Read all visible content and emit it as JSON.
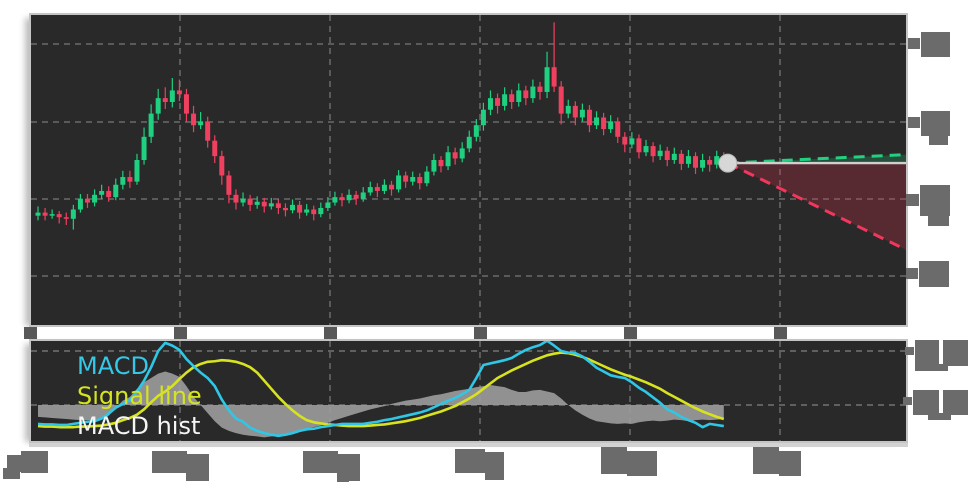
{
  "ui": {
    "macd_legend": [
      {
        "label": "MACD",
        "color": "#35c8e8"
      },
      {
        "label": "Signal line",
        "color": "#d6e41f"
      },
      {
        "label": "MACD hist",
        "color": "#f5f5f5"
      }
    ],
    "redaction_note": "all axis tick labels are obscured by gray pixelated blocks"
  },
  "colors": {
    "panel_bg": "#292929",
    "grid": "#b3b3b3",
    "candle_up": "#1fd081",
    "candle_down": "#f0405f",
    "forecast_upper_line": "#22d17d",
    "forecast_lower_line": "#f2375c",
    "forecast_upper_fill": "rgba(30,210,125,0.22)",
    "forecast_lower_fill": "rgba(235,45,80,0.24)",
    "forecast_baseline": "#cfcfcf",
    "anchor_dot": "#d7d7d7",
    "macd_line": "#2fc7e6",
    "signal_line": "#d8e320",
    "hist_fill": "#9c9c9c",
    "redacted_block": "#6b6b6b"
  },
  "chart_data": {
    "type": "candlestick",
    "note": "prices in normalized units; horizontal gridlines sit at 1,2,3,4; axis labels redacted in source image",
    "price_axis": {
      "gridline_values": [
        4,
        3,
        2,
        1
      ],
      "labels_redacted": true
    },
    "time_axis": {
      "tick_count": 6,
      "labels_redacted": true
    },
    "candles": [
      [
        1.78,
        1.9,
        1.72,
        1.82
      ],
      [
        1.82,
        1.88,
        1.72,
        1.78
      ],
      [
        1.78,
        1.86,
        1.74,
        1.8
      ],
      [
        1.8,
        1.84,
        1.68,
        1.76
      ],
      [
        1.76,
        1.82,
        1.66,
        1.74
      ],
      [
        1.74,
        1.92,
        1.6,
        1.86
      ],
      [
        1.86,
        2.06,
        1.82,
        2.0
      ],
      [
        2.0,
        2.06,
        1.88,
        1.95
      ],
      [
        1.95,
        2.12,
        1.9,
        2.05
      ],
      [
        2.05,
        2.18,
        2.0,
        2.1
      ],
      [
        2.1,
        2.16,
        1.96,
        2.02
      ],
      [
        2.02,
        2.26,
        1.98,
        2.18
      ],
      [
        2.18,
        2.36,
        2.12,
        2.28
      ],
      [
        2.28,
        2.36,
        2.14,
        2.22
      ],
      [
        2.22,
        2.58,
        2.18,
        2.5
      ],
      [
        2.5,
        2.92,
        2.44,
        2.8
      ],
      [
        2.8,
        3.22,
        2.72,
        3.1
      ],
      [
        3.1,
        3.42,
        3.02,
        3.3
      ],
      [
        3.3,
        3.44,
        3.16,
        3.25
      ],
      [
        3.25,
        3.56,
        3.18,
        3.4
      ],
      [
        3.4,
        3.54,
        3.26,
        3.35
      ],
      [
        3.35,
        3.42,
        3.0,
        3.1
      ],
      [
        3.1,
        3.2,
        2.86,
        2.95
      ],
      [
        2.95,
        3.12,
        2.9,
        3.0
      ],
      [
        3.0,
        3.06,
        2.66,
        2.75
      ],
      [
        2.75,
        2.82,
        2.46,
        2.55
      ],
      [
        2.55,
        2.62,
        2.18,
        2.3
      ],
      [
        2.3,
        2.36,
        1.94,
        2.05
      ],
      [
        2.05,
        2.12,
        1.86,
        1.95
      ],
      [
        1.95,
        2.08,
        1.9,
        2.0
      ],
      [
        2.0,
        2.05,
        1.84,
        1.92
      ],
      [
        1.92,
        2.03,
        1.87,
        1.96
      ],
      [
        1.96,
        2.01,
        1.82,
        1.9
      ],
      [
        1.9,
        2.01,
        1.86,
        1.94
      ],
      [
        1.94,
        1.99,
        1.8,
        1.88
      ],
      [
        1.88,
        1.94,
        1.77,
        1.85
      ],
      [
        1.85,
        1.99,
        1.81,
        1.92
      ],
      [
        1.92,
        1.97,
        1.74,
        1.82
      ],
      [
        1.82,
        1.93,
        1.78,
        1.86
      ],
      [
        1.86,
        1.91,
        1.72,
        1.8
      ],
      [
        1.8,
        1.95,
        1.76,
        1.88
      ],
      [
        1.88,
        2.02,
        1.84,
        1.95
      ],
      [
        1.95,
        2.09,
        1.91,
        2.02
      ],
      [
        2.02,
        2.07,
        1.9,
        1.98
      ],
      [
        1.98,
        2.12,
        1.94,
        2.05
      ],
      [
        2.05,
        2.1,
        1.92,
        2.0
      ],
      [
        2.0,
        2.15,
        1.96,
        2.08
      ],
      [
        2.08,
        2.22,
        2.04,
        2.15
      ],
      [
        2.15,
        2.2,
        2.02,
        2.1
      ],
      [
        2.1,
        2.25,
        2.06,
        2.18
      ],
      [
        2.18,
        2.23,
        2.04,
        2.12
      ],
      [
        2.12,
        2.37,
        2.08,
        2.3
      ],
      [
        2.3,
        2.35,
        2.14,
        2.22
      ],
      [
        2.22,
        2.35,
        2.17,
        2.28
      ],
      [
        2.28,
        2.33,
        2.12,
        2.2
      ],
      [
        2.2,
        2.42,
        2.16,
        2.35
      ],
      [
        2.35,
        2.58,
        2.3,
        2.5
      ],
      [
        2.5,
        2.55,
        2.34,
        2.42
      ],
      [
        2.42,
        2.68,
        2.37,
        2.6
      ],
      [
        2.6,
        2.66,
        2.44,
        2.52
      ],
      [
        2.52,
        2.73,
        2.47,
        2.65
      ],
      [
        2.65,
        2.88,
        2.6,
        2.8
      ],
      [
        2.8,
        3.03,
        2.74,
        2.95
      ],
      [
        2.95,
        3.24,
        2.88,
        3.15
      ],
      [
        3.15,
        3.4,
        3.08,
        3.3
      ],
      [
        3.3,
        3.36,
        3.1,
        3.2
      ],
      [
        3.2,
        3.44,
        3.14,
        3.35
      ],
      [
        3.35,
        3.41,
        3.16,
        3.25
      ],
      [
        3.25,
        3.49,
        3.19,
        3.4
      ],
      [
        3.4,
        3.46,
        3.21,
        3.3
      ],
      [
        3.3,
        3.54,
        3.24,
        3.45
      ],
      [
        3.45,
        3.51,
        3.28,
        3.38
      ],
      [
        3.38,
        3.9,
        3.3,
        3.7
      ],
      [
        3.7,
        4.28,
        3.38,
        3.45
      ],
      [
        3.45,
        3.52,
        2.96,
        3.1
      ],
      [
        3.1,
        3.28,
        3.04,
        3.2
      ],
      [
        3.2,
        3.26,
        2.95,
        3.05
      ],
      [
        3.05,
        3.23,
        3.0,
        3.15
      ],
      [
        3.15,
        3.21,
        2.86,
        2.95
      ],
      [
        2.95,
        3.13,
        2.9,
        3.05
      ],
      [
        3.05,
        3.11,
        2.82,
        2.9
      ],
      [
        2.9,
        3.08,
        2.85,
        3.0
      ],
      [
        3.0,
        3.05,
        2.72,
        2.8
      ],
      [
        2.8,
        2.86,
        2.6,
        2.7
      ],
      [
        2.7,
        2.86,
        2.65,
        2.78
      ],
      [
        2.78,
        2.83,
        2.52,
        2.6
      ],
      [
        2.6,
        2.76,
        2.55,
        2.68
      ],
      [
        2.68,
        2.73,
        2.47,
        2.55
      ],
      [
        2.55,
        2.7,
        2.5,
        2.62
      ],
      [
        2.62,
        2.67,
        2.42,
        2.5
      ],
      [
        2.5,
        2.66,
        2.45,
        2.58
      ],
      [
        2.58,
        2.63,
        2.37,
        2.45
      ],
      [
        2.45,
        2.63,
        2.4,
        2.55
      ],
      [
        2.55,
        2.6,
        2.32,
        2.4
      ],
      [
        2.4,
        2.58,
        2.35,
        2.5
      ],
      [
        2.5,
        2.55,
        2.35,
        2.44
      ],
      [
        2.44,
        2.62,
        2.39,
        2.55
      ],
      [
        2.55,
        2.6,
        2.38,
        2.46
      ]
    ],
    "forecast": {
      "anchor_index": 97,
      "anchor_price": 2.46,
      "baseline_price": 2.46,
      "upper_end_price": 2.57,
      "lower_end_price": 1.34
    },
    "macd_panel": {
      "gridline_value": 1.0,
      "zero_line": 0.0,
      "macd": [
        -0.35,
        -0.36,
        -0.36,
        -0.37,
        -0.37,
        -0.35,
        -0.33,
        -0.31,
        -0.3,
        -0.25,
        -0.16,
        -0.05,
        0.02,
        0.09,
        0.25,
        0.45,
        0.7,
        1.0,
        1.15,
        1.1,
        1.02,
        0.85,
        0.72,
        0.6,
        0.5,
        0.35,
        0.1,
        -0.1,
        -0.25,
        -0.31,
        -0.42,
        -0.48,
        -0.52,
        -0.55,
        -0.57,
        -0.55,
        -0.52,
        -0.48,
        -0.45,
        -0.44,
        -0.41,
        -0.39,
        -0.37,
        -0.35,
        -0.35,
        -0.35,
        -0.35,
        -0.33,
        -0.31,
        -0.28,
        -0.26,
        -0.23,
        -0.2,
        -0.17,
        -0.14,
        -0.1,
        -0.04,
        0.02,
        0.08,
        0.13,
        0.2,
        0.28,
        0.5,
        0.74,
        0.77,
        0.8,
        0.83,
        0.87,
        0.95,
        1.02,
        1.07,
        1.11,
        1.19,
        1.1,
        1.0,
        0.97,
        0.96,
        0.9,
        0.8,
        0.69,
        0.62,
        0.55,
        0.52,
        0.5,
        0.42,
        0.32,
        0.24,
        0.14,
        0.04,
        -0.08,
        -0.14,
        -0.22,
        -0.28,
        -0.33,
        -0.41,
        -0.35,
        -0.37,
        -0.39
      ],
      "signal": [
        -0.39,
        -0.4,
        -0.4,
        -0.41,
        -0.41,
        -0.41,
        -0.4,
        -0.4,
        -0.39,
        -0.38,
        -0.36,
        -0.33,
        -0.28,
        -0.24,
        -0.18,
        -0.08,
        0.05,
        0.17,
        0.25,
        0.35,
        0.48,
        0.6,
        0.7,
        0.76,
        0.8,
        0.81,
        0.83,
        0.82,
        0.8,
        0.76,
        0.7,
        0.6,
        0.45,
        0.3,
        0.15,
        0.02,
        -0.1,
        -0.2,
        -0.28,
        -0.32,
        -0.34,
        -0.36,
        -0.37,
        -0.38,
        -0.39,
        -0.39,
        -0.39,
        -0.38,
        -0.37,
        -0.36,
        -0.34,
        -0.32,
        -0.3,
        -0.27,
        -0.24,
        -0.2,
        -0.16,
        -0.12,
        -0.07,
        -0.02,
        0.05,
        0.12,
        0.2,
        0.3,
        0.4,
        0.5,
        0.57,
        0.64,
        0.7,
        0.76,
        0.82,
        0.87,
        0.92,
        0.95,
        0.97,
        0.96,
        0.93,
        0.89,
        0.84,
        0.78,
        0.72,
        0.66,
        0.61,
        0.56,
        0.52,
        0.47,
        0.42,
        0.36,
        0.3,
        0.22,
        0.15,
        0.08,
        0.01,
        -0.06,
        -0.12,
        -0.17,
        -0.22,
        -0.26
      ],
      "hist": [
        -0.22,
        -0.23,
        -0.24,
        -0.25,
        -0.26,
        -0.27,
        -0.28,
        -0.28,
        -0.28,
        -0.26,
        -0.2,
        -0.05,
        0.08,
        0.15,
        0.3,
        0.42,
        0.5,
        0.58,
        0.62,
        0.58,
        0.52,
        0.35,
        0.15,
        0.0,
        -0.15,
        -0.3,
        -0.42,
        -0.48,
        -0.52,
        -0.55,
        -0.57,
        -0.58,
        -0.6,
        -0.58,
        -0.56,
        -0.53,
        -0.5,
        -0.47,
        -0.44,
        -0.41,
        -0.38,
        -0.33,
        -0.28,
        -0.24,
        -0.2,
        -0.16,
        -0.12,
        -0.08,
        -0.05,
        -0.02,
        0.02,
        0.05,
        0.08,
        0.1,
        0.12,
        0.15,
        0.18,
        0.2,
        0.23,
        0.26,
        0.28,
        0.3,
        0.33,
        0.35,
        0.37,
        0.35,
        0.33,
        0.28,
        0.24,
        0.24,
        0.27,
        0.28,
        0.25,
        0.22,
        0.12,
        0.0,
        -0.1,
        -0.18,
        -0.25,
        -0.3,
        -0.32,
        -0.34,
        -0.35,
        -0.34,
        -0.35,
        -0.32,
        -0.3,
        -0.29,
        -0.3,
        -0.29,
        -0.27,
        -0.28,
        -0.3,
        -0.28,
        -0.27,
        -0.28,
        -0.27,
        -0.26
      ]
    }
  },
  "redactions": {
    "strip_squares": [
      [
        24,
        327,
        13,
        12
      ],
      [
        174,
        327,
        13,
        12
      ],
      [
        324,
        327,
        13,
        12
      ],
      [
        474,
        327,
        13,
        12
      ],
      [
        624,
        327,
        13,
        12
      ],
      [
        774,
        327,
        13,
        12
      ]
    ],
    "price_axis_labels": [
      {
        "name": "price-tick-1",
        "rects": [
          [
            908,
            38,
            12,
            11
          ],
          [
            921,
            32,
            29,
            25
          ]
        ]
      },
      {
        "name": "price-tick-2",
        "rects": [
          [
            908,
            117,
            12,
            11
          ],
          [
            921,
            111,
            29,
            25
          ],
          [
            929,
            134,
            19,
            11
          ]
        ]
      },
      {
        "name": "price-tick-3",
        "rects": [
          [
            906,
            194,
            13,
            12
          ],
          [
            920,
            185,
            30,
            31
          ],
          [
            928,
            214,
            21,
            12
          ]
        ]
      },
      {
        "name": "price-tick-4",
        "rects": [
          [
            906,
            268,
            12,
            11
          ],
          [
            919,
            261,
            30,
            26
          ]
        ]
      }
    ],
    "macd_axis_labels": [
      {
        "name": "macd-tick-1",
        "rects": [
          [
            905,
            347,
            9,
            8
          ],
          [
            915,
            340,
            24,
            26
          ],
          [
            943,
            340,
            25,
            26
          ],
          [
            915,
            364,
            33,
            7
          ]
        ]
      },
      {
        "name": "macd-tick-2",
        "rects": [
          [
            903,
            397,
            9,
            8
          ],
          [
            913,
            390,
            26,
            25
          ],
          [
            943,
            390,
            25,
            25
          ],
          [
            928,
            413,
            23,
            7
          ]
        ]
      }
    ],
    "time_axis_labels": [
      {
        "name": "time-tick-1",
        "rects": [
          [
            7,
            455,
            14,
            17
          ],
          [
            21,
            451,
            27,
            22
          ],
          [
            3,
            468,
            17,
            11
          ]
        ]
      },
      {
        "name": "time-tick-2",
        "rects": [
          [
            152,
            451,
            35,
            22
          ],
          [
            186,
            454,
            23,
            27
          ]
        ]
      },
      {
        "name": "time-tick-3",
        "rects": [
          [
            303,
            451,
            35,
            22
          ],
          [
            337,
            454,
            23,
            27
          ],
          [
            337,
            476,
            12,
            6
          ]
        ]
      },
      {
        "name": "time-tick-4",
        "rects": [
          [
            455,
            449,
            30,
            24
          ],
          [
            485,
            452,
            19,
            28
          ],
          [
            486,
            472,
            18,
            7
          ]
        ]
      },
      {
        "name": "time-tick-5",
        "rects": [
          [
            601,
            447,
            26,
            27
          ],
          [
            627,
            451,
            30,
            25
          ]
        ]
      },
      {
        "name": "time-tick-6",
        "rects": [
          [
            753,
            447,
            26,
            27
          ],
          [
            779,
            451,
            22,
            25
          ]
        ]
      }
    ]
  }
}
